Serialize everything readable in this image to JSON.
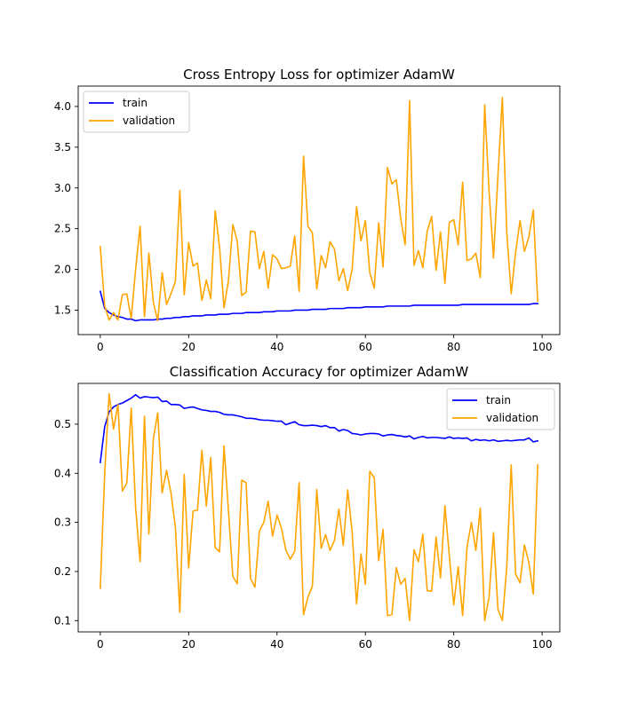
{
  "chart_data": [
    {
      "type": "line",
      "title": "Cross Entropy Loss for optimizer AdamW",
      "xlabel": "",
      "ylabel": "",
      "xlim": [
        -5,
        104
      ],
      "ylim": [
        1.2,
        4.25
      ],
      "xticks": [
        0,
        20,
        40,
        60,
        80,
        100
      ],
      "yticks": [
        1.5,
        2.0,
        2.5,
        3.0,
        3.5,
        4.0
      ],
      "xtick_labels": [
        "0",
        "20",
        "40",
        "60",
        "80",
        "100"
      ],
      "ytick_labels": [
        "1.5",
        "2.0",
        "2.5",
        "3.0",
        "3.5",
        "4.0"
      ],
      "legend_position": "top-left",
      "grid": false,
      "series": [
        {
          "name": "train",
          "color": "#0000ff",
          "values": [
            1.73,
            1.52,
            1.47,
            1.44,
            1.42,
            1.41,
            1.39,
            1.39,
            1.37,
            1.38,
            1.38,
            1.38,
            1.38,
            1.39,
            1.39,
            1.4,
            1.4,
            1.41,
            1.41,
            1.42,
            1.42,
            1.43,
            1.43,
            1.43,
            1.44,
            1.44,
            1.44,
            1.45,
            1.45,
            1.45,
            1.46,
            1.46,
            1.46,
            1.47,
            1.47,
            1.47,
            1.47,
            1.48,
            1.48,
            1.48,
            1.49,
            1.49,
            1.49,
            1.49,
            1.5,
            1.5,
            1.5,
            1.5,
            1.51,
            1.51,
            1.51,
            1.51,
            1.52,
            1.52,
            1.52,
            1.52,
            1.53,
            1.53,
            1.53,
            1.53,
            1.54,
            1.54,
            1.54,
            1.54,
            1.54,
            1.55,
            1.55,
            1.55,
            1.55,
            1.55,
            1.55,
            1.56,
            1.56,
            1.56,
            1.56,
            1.56,
            1.56,
            1.56,
            1.56,
            1.56,
            1.56,
            1.56,
            1.57,
            1.57,
            1.57,
            1.57,
            1.57,
            1.57,
            1.57,
            1.57,
            1.57,
            1.57,
            1.57,
            1.57,
            1.57,
            1.57,
            1.57,
            1.57,
            1.58,
            1.58
          ]
        },
        {
          "name": "validation",
          "color": "#ffa500",
          "values": [
            2.28,
            1.55,
            1.38,
            1.47,
            1.38,
            1.69,
            1.7,
            1.4,
            2.0,
            2.53,
            1.42,
            2.2,
            1.6,
            1.37,
            1.96,
            1.57,
            1.7,
            1.85,
            2.97,
            1.69,
            2.33,
            2.04,
            2.08,
            1.62,
            1.87,
            1.64,
            2.72,
            2.27,
            1.53,
            1.86,
            2.55,
            2.35,
            1.68,
            1.72,
            2.47,
            2.46,
            2.01,
            2.22,
            1.77,
            2.18,
            2.13,
            2.01,
            2.02,
            2.04,
            2.41,
            1.73,
            3.39,
            2.53,
            2.45,
            1.76,
            2.17,
            2.02,
            2.34,
            2.25,
            1.86,
            2.01,
            1.74,
            2.0,
            2.77,
            2.35,
            2.6,
            1.96,
            1.77,
            2.57,
            2.03,
            3.25,
            3.05,
            3.1,
            2.62,
            2.3,
            4.07,
            2.05,
            2.23,
            2.02,
            2.47,
            2.65,
            1.99,
            2.46,
            1.83,
            2.58,
            2.61,
            2.3,
            3.07,
            2.11,
            2.13,
            2.2,
            1.9,
            4.02,
            2.95,
            2.14,
            3.15,
            4.11,
            2.45,
            1.7,
            2.21,
            2.6,
            2.22,
            2.4,
            2.73,
            1.61
          ]
        }
      ]
    },
    {
      "type": "line",
      "title": "Classification Accuracy for optimizer AdamW",
      "xlabel": "",
      "ylabel": "",
      "xlim": [
        -5,
        104
      ],
      "ylim": [
        0.077,
        0.583
      ],
      "xticks": [
        0,
        20,
        40,
        60,
        80,
        100
      ],
      "yticks": [
        0.1,
        0.2,
        0.3,
        0.4,
        0.5
      ],
      "xtick_labels": [
        "0",
        "20",
        "40",
        "60",
        "80",
        "100"
      ],
      "ytick_labels": [
        "0.1",
        "0.2",
        "0.3",
        "0.4",
        "0.5"
      ],
      "legend_position": "top-right",
      "grid": false,
      "series": [
        {
          "name": "train",
          "color": "#0000ff",
          "values": [
            0.422,
            0.495,
            0.525,
            0.535,
            0.54,
            0.543,
            0.548,
            0.553,
            0.56,
            0.553,
            0.556,
            0.555,
            0.554,
            0.555,
            0.546,
            0.547,
            0.54,
            0.54,
            0.539,
            0.532,
            0.534,
            0.535,
            0.532,
            0.529,
            0.528,
            0.526,
            0.526,
            0.524,
            0.52,
            0.519,
            0.519,
            0.517,
            0.515,
            0.512,
            0.512,
            0.511,
            0.509,
            0.508,
            0.508,
            0.507,
            0.506,
            0.506,
            0.499,
            0.502,
            0.505,
            0.499,
            0.497,
            0.497,
            0.498,
            0.497,
            0.495,
            0.497,
            0.493,
            0.493,
            0.486,
            0.489,
            0.487,
            0.481,
            0.48,
            0.478,
            0.48,
            0.481,
            0.481,
            0.48,
            0.476,
            0.478,
            0.479,
            0.477,
            0.476,
            0.474,
            0.476,
            0.47,
            0.473,
            0.475,
            0.472,
            0.473,
            0.473,
            0.472,
            0.471,
            0.474,
            0.471,
            0.472,
            0.471,
            0.472,
            0.466,
            0.469,
            0.467,
            0.468,
            0.466,
            0.468,
            0.465,
            0.466,
            0.467,
            0.466,
            0.467,
            0.468,
            0.468,
            0.472,
            0.464,
            0.466
          ]
        },
        {
          "name": "validation",
          "color": "#ffa500",
          "values": [
            0.166,
            0.4,
            0.562,
            0.49,
            0.54,
            0.364,
            0.38,
            0.533,
            0.33,
            0.22,
            0.516,
            0.276,
            0.47,
            0.523,
            0.36,
            0.406,
            0.36,
            0.29,
            0.117,
            0.398,
            0.207,
            0.323,
            0.325,
            0.447,
            0.333,
            0.432,
            0.249,
            0.24,
            0.456,
            0.325,
            0.19,
            0.175,
            0.386,
            0.381,
            0.186,
            0.168,
            0.282,
            0.3,
            0.343,
            0.272,
            0.315,
            0.288,
            0.244,
            0.225,
            0.241,
            0.381,
            0.112,
            0.148,
            0.17,
            0.367,
            0.247,
            0.275,
            0.243,
            0.263,
            0.327,
            0.253,
            0.366,
            0.28,
            0.134,
            0.236,
            0.174,
            0.404,
            0.391,
            0.222,
            0.286,
            0.11,
            0.112,
            0.208,
            0.174,
            0.186,
            0.1,
            0.244,
            0.22,
            0.276,
            0.161,
            0.16,
            0.27,
            0.187,
            0.334,
            0.232,
            0.132,
            0.21,
            0.11,
            0.25,
            0.3,
            0.243,
            0.329,
            0.1,
            0.148,
            0.279,
            0.123,
            0.1,
            0.21,
            0.417,
            0.195,
            0.177,
            0.254,
            0.218,
            0.154,
            0.417
          ]
        }
      ]
    }
  ]
}
